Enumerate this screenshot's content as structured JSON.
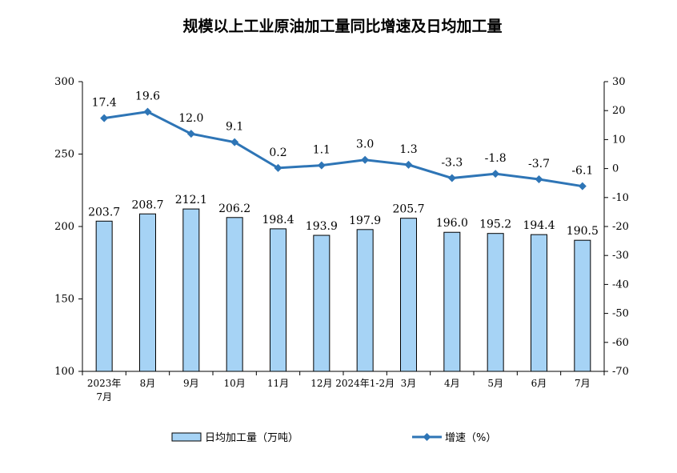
{
  "chart_data": {
    "type": "bar",
    "title": "规模以上工业原油加工量同比增速及日均加工量",
    "categories": [
      [
        "2023年",
        "7月"
      ],
      [
        "8月"
      ],
      [
        "9月"
      ],
      [
        "10月"
      ],
      [
        "11月"
      ],
      [
        "12月"
      ],
      [
        "2024年1-2月"
      ],
      [
        "3月"
      ],
      [
        "4月"
      ],
      [
        "5月"
      ],
      [
        "6月"
      ],
      [
        "7月"
      ]
    ],
    "series": [
      {
        "name": "日均加工量（万吨）",
        "type": "bar",
        "axis": "left",
        "values": [
          203.7,
          208.7,
          212.1,
          206.2,
          198.4,
          193.9,
          197.9,
          205.7,
          196.0,
          195.2,
          194.4,
          190.5
        ],
        "labels": [
          "203.7",
          "208.7",
          "212.1",
          "206.2",
          "198.4",
          "193.9",
          "197.9",
          "205.7",
          "196.0",
          "195.2",
          "194.4",
          "190.5"
        ]
      },
      {
        "name": "增速（%）",
        "type": "line",
        "axis": "right",
        "values": [
          17.4,
          19.6,
          12.0,
          9.1,
          0.2,
          1.1,
          3.0,
          1.3,
          -3.3,
          -1.8,
          -3.7,
          -6.1
        ],
        "labels": [
          "17.4",
          "19.6",
          "12.0",
          "9.1",
          "0.2",
          "1.1",
          "3.0",
          "1.3",
          "-3.3",
          "-1.8",
          "-3.7",
          "-6.1"
        ]
      }
    ],
    "y_left": {
      "min": 100,
      "max": 300,
      "ticks": [
        100,
        150,
        200,
        250,
        300
      ]
    },
    "y_right": {
      "min": -70,
      "max": 30,
      "ticks": [
        30,
        20,
        10,
        0,
        -10,
        -20,
        -30,
        -40,
        -50,
        -60,
        -70
      ]
    },
    "grid": false,
    "legend": "bottom",
    "colors": {
      "bar_fill": "#a6d3f5",
      "bar_stroke": "#000000",
      "line": "#2e75b6"
    }
  }
}
